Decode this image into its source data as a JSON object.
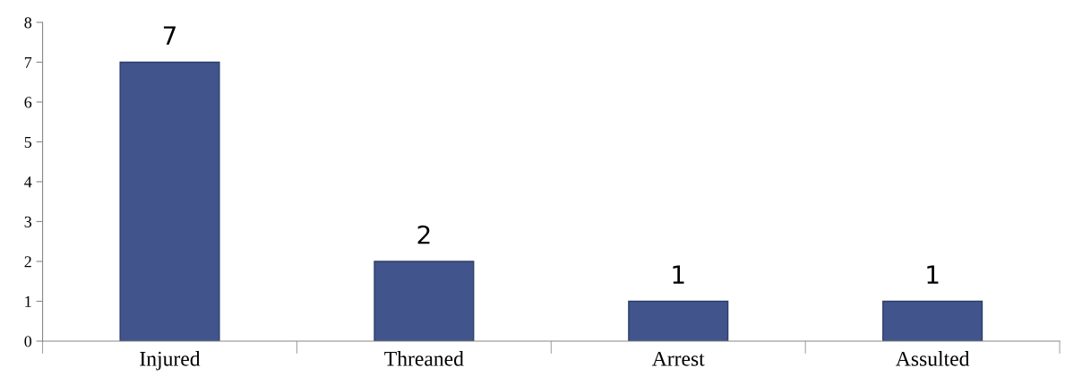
{
  "chart_data": {
    "type": "bar",
    "categories": [
      "Injured",
      "Threaned",
      "Arrest",
      "Assulted"
    ],
    "values": [
      7,
      2,
      1,
      1
    ],
    "color": "#41548c",
    "ylim": [
      0,
      8
    ],
    "yticks": [
      0,
      1,
      2,
      3,
      4,
      5,
      6,
      7,
      8
    ],
    "grid": false,
    "data_labels": true
  }
}
